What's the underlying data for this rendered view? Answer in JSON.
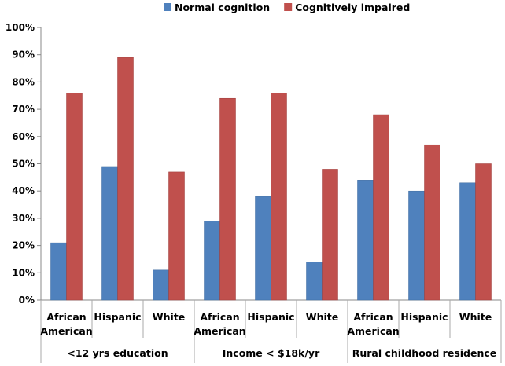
{
  "chart_data": {
    "type": "bar",
    "title": "",
    "xlabel": "",
    "ylabel": "",
    "ylim": [
      0,
      100
    ],
    "y_ticks": [
      "0%",
      "10%",
      "20%",
      "30%",
      "40%",
      "50%",
      "60%",
      "70%",
      "80%",
      "90%",
      "100%"
    ],
    "grid": false,
    "legend_position": "top",
    "categories": [
      "African American",
      "Hispanic",
      "White",
      "African American",
      "Hispanic",
      "White",
      "African American",
      "Hispanic",
      "White"
    ],
    "groups": [
      {
        "label": "<12 yrs education",
        "span": 3
      },
      {
        "label": "Income < $18k/yr",
        "span": 3
      },
      {
        "label": "Rural childhood residence",
        "span": 3
      }
    ],
    "series": [
      {
        "name": "Normal cognition",
        "color": "#4f81bd",
        "values": [
          21,
          49,
          11,
          29,
          38,
          14,
          44,
          40,
          43
        ]
      },
      {
        "name": "Cognitively impaired",
        "color": "#c0504d",
        "values": [
          76,
          89,
          47,
          74,
          76,
          48,
          68,
          57,
          50
        ]
      }
    ]
  }
}
